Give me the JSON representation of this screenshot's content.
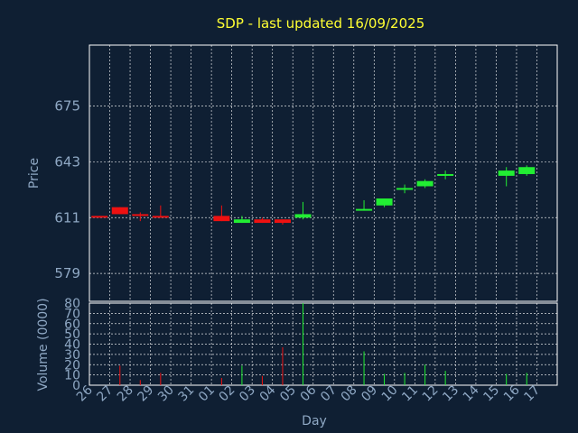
{
  "chart_data": [
    {
      "type": "candlestick",
      "title": "SDP - last updated 16/09/2025",
      "ylabel": "Price",
      "yticks": [
        579,
        611,
        643,
        675
      ],
      "ylim": [
        563,
        710
      ],
      "grid": true,
      "colors": {
        "up": "#22ee33",
        "down": "#ee1111",
        "background": "#0f1f33",
        "title": "#ffff33",
        "axis_text": "#8fa8c4"
      },
      "candles": [
        {
          "day": "26",
          "open": 612,
          "close": 611,
          "high": 612,
          "low": 611
        },
        {
          "day": "27",
          "open": 617,
          "close": 613,
          "high": 617,
          "low": 613
        },
        {
          "day": "28",
          "open": 613,
          "close": 612,
          "high": 614,
          "low": 609
        },
        {
          "day": "29",
          "open": 612,
          "close": 611,
          "high": 618,
          "low": 611
        },
        {
          "day": "01",
          "open": 612,
          "close": 609,
          "high": 618,
          "low": 609
        },
        {
          "day": "02",
          "open": 608,
          "close": 610,
          "high": 612,
          "low": 608
        },
        {
          "day": "03",
          "open": 610,
          "close": 608,
          "high": 611,
          "low": 608
        },
        {
          "day": "04",
          "open": 610,
          "close": 608,
          "high": 610,
          "low": 607
        },
        {
          "day": "05",
          "open": 611,
          "close": 613,
          "high": 620,
          "low": 610
        },
        {
          "day": "08",
          "open": 615,
          "close": 616,
          "high": 621,
          "low": 615
        },
        {
          "day": "09",
          "open": 618,
          "close": 622,
          "high": 622,
          "low": 617
        },
        {
          "day": "10",
          "open": 627,
          "close": 628,
          "high": 630,
          "low": 625
        },
        {
          "day": "11",
          "open": 629,
          "close": 632,
          "high": 633,
          "low": 628
        },
        {
          "day": "12",
          "open": 635,
          "close": 636,
          "high": 638,
          "low": 633
        },
        {
          "day": "15",
          "open": 635,
          "close": 638,
          "high": 640,
          "low": 629
        },
        {
          "day": "16",
          "open": 636,
          "close": 640,
          "high": 641,
          "low": 635
        }
      ]
    },
    {
      "type": "bar",
      "xlabel": "Day",
      "ylabel": "Volume (0000)",
      "yticks": [
        0,
        10,
        20,
        30,
        40,
        50,
        60,
        70,
        80
      ],
      "ylim": [
        0,
        80
      ],
      "categories": [
        "26",
        "27",
        "28",
        "29",
        "30",
        "31",
        "01",
        "02",
        "03",
        "04",
        "05",
        "06",
        "07",
        "08",
        "09",
        "10",
        "11",
        "12",
        "13",
        "14",
        "15",
        "16",
        "17"
      ],
      "values": [
        0,
        19,
        5,
        12,
        0,
        0,
        7,
        19,
        9,
        37,
        80,
        0,
        0,
        33,
        11,
        12,
        20,
        14,
        0,
        0,
        11,
        12,
        0
      ],
      "bar_colors": [
        "none",
        "down",
        "down",
        "down",
        "none",
        "none",
        "down",
        "up",
        "down",
        "down",
        "up",
        "none",
        "none",
        "up",
        "up",
        "up",
        "up",
        "up",
        "none",
        "none",
        "up",
        "up",
        "none"
      ]
    }
  ]
}
